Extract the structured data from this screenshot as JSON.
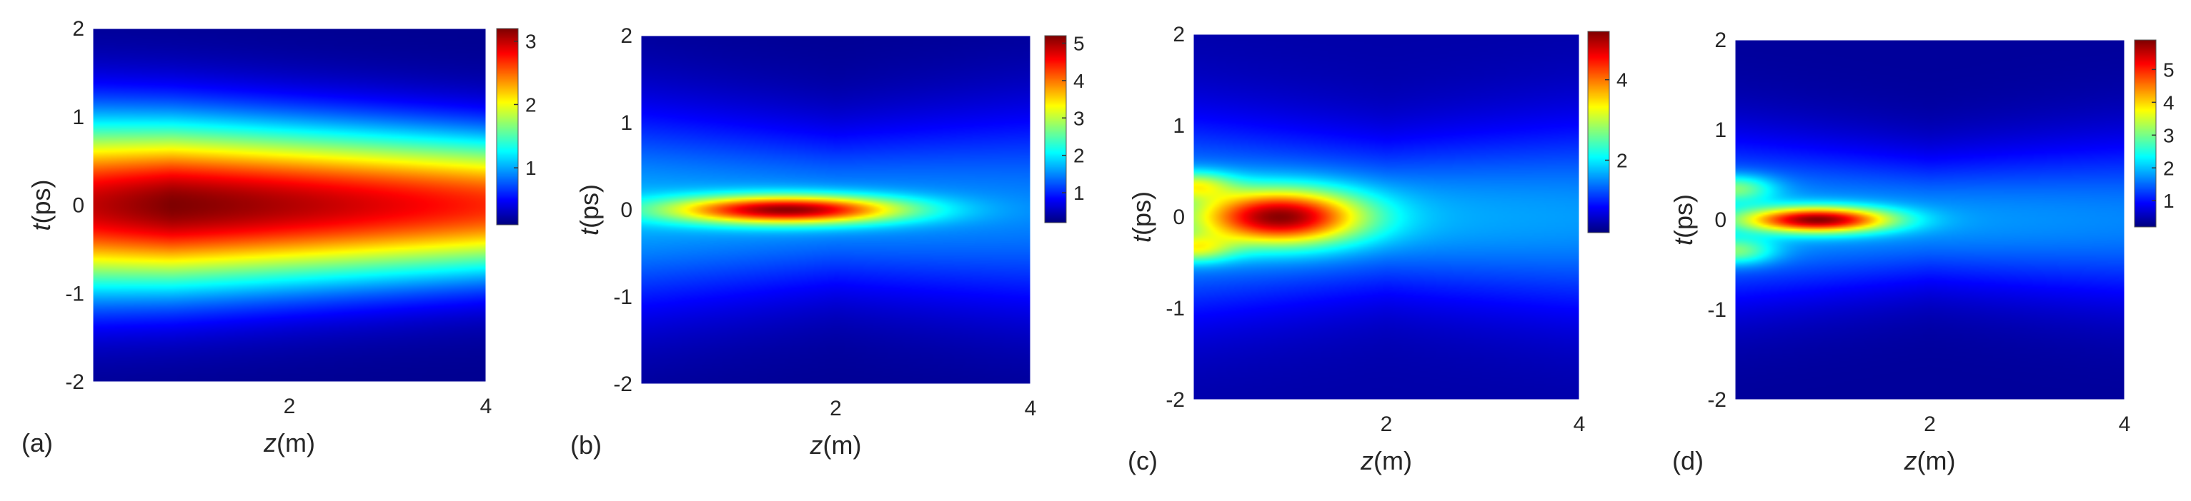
{
  "chart_data": [
    {
      "type": "heatmap",
      "panel_label": "(a)",
      "xlabel_var": "z",
      "xlabel_unit": "(m)",
      "ylabel_var": "t",
      "ylabel_unit": "(ps)",
      "xlim": [
        0,
        4
      ],
      "ylim": [
        -2,
        2
      ],
      "xticks": [
        "2",
        "4"
      ],
      "yticks": [
        "2",
        "1",
        "0",
        "-1",
        "-2"
      ],
      "colorbar": {
        "min": 0.1,
        "max": 3.2,
        "ticks": [
          "3",
          "2",
          "1"
        ]
      },
      "field": {
        "peak_z": 0.8,
        "peak": 3.2,
        "base": 0.15,
        "width_start": 0.95,
        "width_end": 0.78,
        "ridge_len": 6.0,
        "amp_end": 2.7
      }
    },
    {
      "type": "heatmap",
      "panel_label": "(b)",
      "xlabel_var": "z",
      "xlabel_unit": "(m)",
      "ylabel_var": "t",
      "ylabel_unit": "(ps)",
      "xlim": [
        0,
        4
      ],
      "ylim": [
        -2,
        2
      ],
      "xticks": [
        "2",
        "4"
      ],
      "yticks": [
        "2",
        "1",
        "0",
        "-1",
        "-2"
      ],
      "colorbar": {
        "min": 0.2,
        "max": 5.2,
        "ticks": [
          "5",
          "4",
          "3",
          "2",
          "1"
        ]
      },
      "field": {
        "peak_z": 1.5,
        "peak": 5.2,
        "base": 0.3,
        "core_width": 0.16,
        "core_len": 1.2,
        "halo": 1.7,
        "halo_width": 0.9
      }
    },
    {
      "type": "heatmap",
      "panel_label": "(c)",
      "xlabel_var": "z",
      "xlabel_unit": "(m)",
      "ylabel_var": "t",
      "ylabel_unit": "(ps)",
      "xlim": [
        0,
        4
      ],
      "ylim": [
        -2,
        2
      ],
      "xticks": [
        "2",
        "4"
      ],
      "yticks": [
        "2",
        "1",
        "0",
        "-1",
        "-2"
      ],
      "colorbar": {
        "min": 0.2,
        "max": 5.2,
        "ticks": [
          "4",
          "2"
        ]
      },
      "field": {
        "peak_z": 0.9,
        "peak": 5.2,
        "base": 0.4,
        "core_width": 0.3,
        "core_len": 0.85,
        "halo": 1.8,
        "halo_width": 0.8,
        "side_lobes": true
      }
    },
    {
      "type": "heatmap",
      "panel_label": "(d)",
      "xlabel_var": "z",
      "xlabel_unit": "(m)",
      "ylabel_var": "t",
      "ylabel_unit": "(ps)",
      "xlim": [
        0,
        4
      ],
      "ylim": [
        -2,
        2
      ],
      "xticks": [
        "2",
        "4"
      ],
      "yticks": [
        "2",
        "1",
        "0",
        "-1",
        "-2"
      ],
      "colorbar": {
        "min": 0.2,
        "max": 5.9,
        "ticks": [
          "5",
          "4",
          "3",
          "2",
          "1"
        ]
      },
      "field": {
        "peak_z": 0.85,
        "peak": 5.9,
        "base": 0.35,
        "core_width": 0.14,
        "core_len": 0.75,
        "halo": 1.9,
        "halo_width": 0.7,
        "side_lobes": true
      }
    }
  ]
}
